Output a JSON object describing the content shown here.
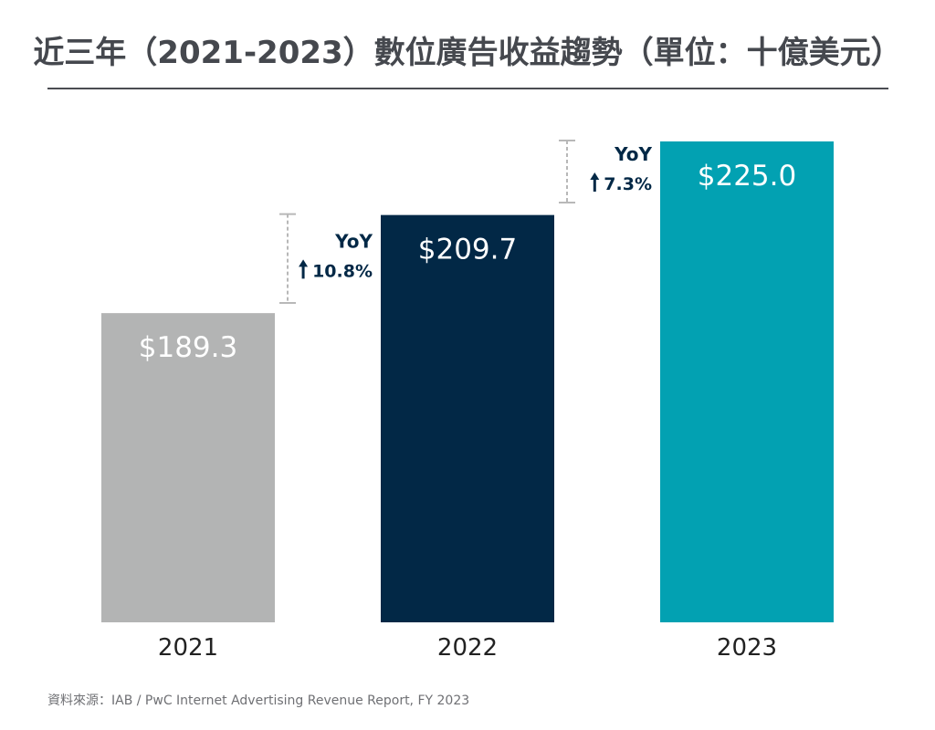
{
  "chart_data": {
    "type": "bar",
    "title": "近三年（2021-2023）數位廣告收益趨勢（單位：十億美元）",
    "categories": [
      "2021",
      "2022",
      "2023"
    ],
    "values": [
      189.3,
      209.7,
      225.0
    ],
    "data_labels": [
      "$189.3",
      "$209.7",
      "$225.0"
    ],
    "colors": [
      "#b3b4b4",
      "#022846",
      "#02a1b2"
    ],
    "ylim": [
      125,
      225
    ],
    "grid": false,
    "annotations": [
      {
        "between": [
          "2021",
          "2022"
        ],
        "label": "YoY",
        "change": "10.8%",
        "icon": "arrow-up-icon"
      },
      {
        "between": [
          "2022",
          "2023"
        ],
        "label": "YoY",
        "change": "7.3%",
        "icon": "arrow-up-icon"
      }
    ],
    "annotation_color": "#022846",
    "source": "資料來源：IAB / PwC Internet Advertising Revenue Report, FY 2023"
  }
}
